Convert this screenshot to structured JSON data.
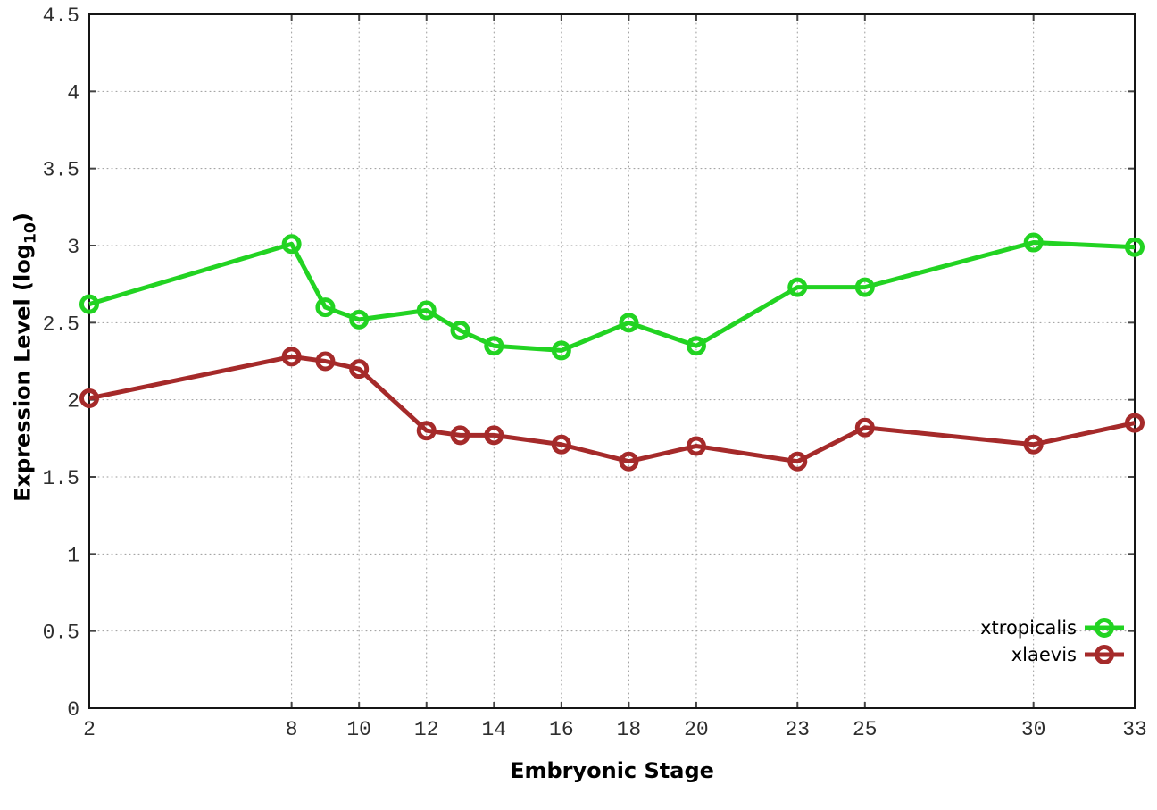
{
  "chart_data": {
    "type": "line",
    "title": "",
    "xlabel": "Embryonic Stage",
    "ylabel": "Expression Level (log10)",
    "ylabel_parts": {
      "pre": "Expression Level (log",
      "sub": "10",
      "post": ")"
    },
    "xlim": [
      2,
      33
    ],
    "ylim": [
      0,
      4.5
    ],
    "x_tick_values": [
      2,
      8,
      10,
      12,
      14,
      16,
      18,
      20,
      23,
      25,
      30,
      33
    ],
    "x_tick_labels": [
      "2",
      "8",
      "10",
      "12",
      "14",
      "16",
      "18",
      "20",
      "23",
      "25",
      "30",
      "33"
    ],
    "y_tick_values": [
      0,
      0.5,
      1,
      1.5,
      2,
      2.5,
      3,
      3.5,
      4,
      4.5
    ],
    "y_tick_labels": [
      "0",
      "0.5",
      "1",
      "1.5",
      "2",
      "2.5",
      "3",
      "3.5",
      "4",
      "4.5"
    ],
    "grid": true,
    "grid_style": "dotted",
    "legend_position": "inside-bottom-right",
    "marker": "open-circle",
    "x": [
      2,
      8,
      9,
      10,
      12,
      13,
      14,
      16,
      18,
      20,
      23,
      25,
      30,
      33
    ],
    "series": [
      {
        "name": "xtropicalis",
        "color": "#22d322",
        "values": [
          2.62,
          3.01,
          2.6,
          2.52,
          2.58,
          2.45,
          2.35,
          2.32,
          2.5,
          2.35,
          2.73,
          2.73,
          3.02,
          2.99
        ]
      },
      {
        "name": "xlaevis",
        "color": "#a52a2a",
        "values": [
          2.01,
          2.28,
          2.25,
          2.2,
          1.8,
          1.77,
          1.77,
          1.71,
          1.6,
          1.7,
          1.6,
          1.82,
          1.71,
          1.85
        ]
      }
    ],
    "colors": {
      "background": "#ffffff",
      "grid": "#999999",
      "axis_border": "#151515",
      "tick_mark": "#444444",
      "tick_text": "#2e2e2e"
    }
  },
  "legend": {
    "entries": [
      {
        "label": "xtropicalis"
      },
      {
        "label": "xlaevis"
      }
    ]
  }
}
